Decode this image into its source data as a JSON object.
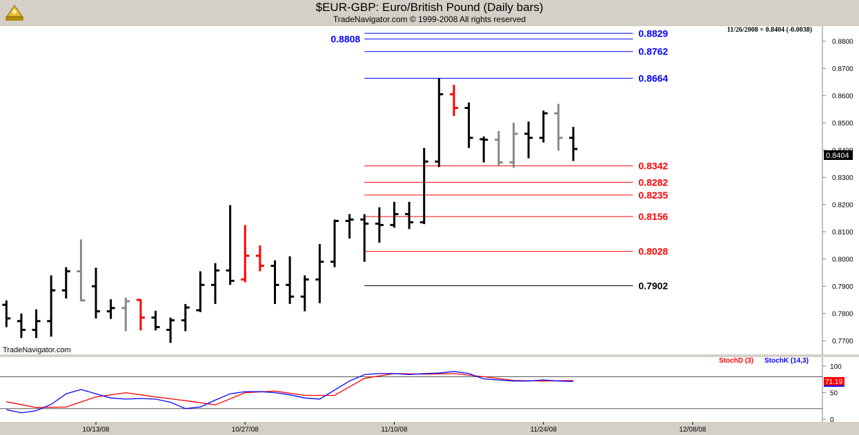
{
  "header": {
    "title": "$EUR-GBP:  Euro/British Pound  (Daily bars)",
    "copyright": "TradeNavigator.com © 1999-2008 All rights reserved"
  },
  "price_panel": {
    "last_info": "11/26/2008 = 0.8404 (-0.0038)",
    "watermark": "TradeNavigator.com",
    "current_price_label": "0.8404"
  },
  "stoch_panel": {
    "legend_d": "StochD (3)",
    "legend_k": "StochK (14,3)",
    "current_value_label": "71.19"
  },
  "colors": {
    "up_bar": "#000000",
    "down_bar_red": "#ff0000",
    "down_bar_gray": "#888888",
    "blue_level": "#0000ff",
    "red_level": "#ff0000",
    "black_level": "#000000",
    "stochK": "#0000ff",
    "stochD": "#ff0000",
    "panel_bg": "#ffffff",
    "frame_bg": "#d4d0c8",
    "price_box": "#000000",
    "stoch_box": "#ff0000"
  },
  "chart_data": [
    {
      "type": "ohlc",
      "title": "$EUR-GBP:  Euro/British Pound  (Daily bars)",
      "ylim": [
        0.765,
        0.8855
      ],
      "y_ticks": [
        "0.7700",
        "0.7800",
        "0.7900",
        "0.8000",
        "0.8100",
        "0.8200",
        "0.8300",
        "0.8400",
        "0.8500",
        "0.8600",
        "0.8700",
        "0.8800"
      ],
      "y_tick_values": [
        0.77,
        0.78,
        0.79,
        0.8,
        0.81,
        0.82,
        0.83,
        0.84,
        0.85,
        0.86,
        0.87,
        0.88
      ],
      "x_ticks": [
        {
          "label": "10/13/08",
          "index": 6
        },
        {
          "label": "10/27/08",
          "index": 16
        },
        {
          "label": "11/10/08",
          "index": 26
        },
        {
          "label": "11/24/08",
          "index": 36
        },
        {
          "label": "12/08/08",
          "index": 46
        }
      ],
      "x_domain": [
        -0.43,
        54.7
      ],
      "bars": [
        {
          "o": 0.7832,
          "h": 0.7848,
          "l": 0.775,
          "c": 0.7782,
          "color": "black"
        },
        {
          "o": 0.7772,
          "h": 0.78,
          "l": 0.771,
          "c": 0.774,
          "color": "black"
        },
        {
          "o": 0.774,
          "h": 0.7815,
          "l": 0.771,
          "c": 0.7772,
          "color": "black"
        },
        {
          "o": 0.7772,
          "h": 0.794,
          "l": 0.7715,
          "c": 0.7885,
          "color": "black"
        },
        {
          "o": 0.7885,
          "h": 0.797,
          "l": 0.7855,
          "c": 0.7955,
          "color": "black"
        },
        {
          "o": 0.7955,
          "h": 0.8072,
          "l": 0.7845,
          "c": 0.7848,
          "color": "gray"
        },
        {
          "o": 0.79,
          "h": 0.7968,
          "l": 0.7782,
          "c": 0.7808,
          "color": "black"
        },
        {
          "o": 0.7808,
          "h": 0.7852,
          "l": 0.778,
          "c": 0.782,
          "color": "black"
        },
        {
          "o": 0.782,
          "h": 0.7858,
          "l": 0.7735,
          "c": 0.7845,
          "color": "gray"
        },
        {
          "o": 0.785,
          "h": 0.7852,
          "l": 0.7738,
          "c": 0.7785,
          "color": "red"
        },
        {
          "o": 0.7785,
          "h": 0.781,
          "l": 0.7738,
          "c": 0.775,
          "color": "black"
        },
        {
          "o": 0.774,
          "h": 0.7785,
          "l": 0.7692,
          "c": 0.7775,
          "color": "black"
        },
        {
          "o": 0.7775,
          "h": 0.7835,
          "l": 0.7735,
          "c": 0.7822,
          "color": "black"
        },
        {
          "o": 0.7812,
          "h": 0.7955,
          "l": 0.7805,
          "c": 0.7905,
          "color": "black"
        },
        {
          "o": 0.7905,
          "h": 0.7985,
          "l": 0.7835,
          "c": 0.7958,
          "color": "black"
        },
        {
          "o": 0.7958,
          "h": 0.8198,
          "l": 0.7905,
          "c": 0.792,
          "color": "black"
        },
        {
          "o": 0.7925,
          "h": 0.8125,
          "l": 0.7915,
          "c": 0.8012,
          "color": "red"
        },
        {
          "o": 0.8012,
          "h": 0.805,
          "l": 0.7955,
          "c": 0.7975,
          "color": "red"
        },
        {
          "o": 0.7975,
          "h": 0.7995,
          "l": 0.7835,
          "c": 0.7905,
          "color": "black"
        },
        {
          "o": 0.7905,
          "h": 0.801,
          "l": 0.7835,
          "c": 0.7862,
          "color": "black"
        },
        {
          "o": 0.7862,
          "h": 0.794,
          "l": 0.7808,
          "c": 0.7925,
          "color": "black"
        },
        {
          "o": 0.7925,
          "h": 0.8055,
          "l": 0.7838,
          "c": 0.799,
          "color": "black"
        },
        {
          "o": 0.799,
          "h": 0.8145,
          "l": 0.797,
          "c": 0.814,
          "color": "black"
        },
        {
          "o": 0.814,
          "h": 0.8165,
          "l": 0.8075,
          "c": 0.8145,
          "color": "black"
        },
        {
          "o": 0.8145,
          "h": 0.8165,
          "l": 0.799,
          "c": 0.813,
          "color": "black"
        },
        {
          "o": 0.813,
          "h": 0.819,
          "l": 0.806,
          "c": 0.8125,
          "color": "black"
        },
        {
          "o": 0.8125,
          "h": 0.821,
          "l": 0.8115,
          "c": 0.8165,
          "color": "black"
        },
        {
          "o": 0.8165,
          "h": 0.821,
          "l": 0.811,
          "c": 0.8135,
          "color": "black"
        },
        {
          "o": 0.8135,
          "h": 0.8408,
          "l": 0.8128,
          "c": 0.8358,
          "color": "black"
        },
        {
          "o": 0.8358,
          "h": 0.8665,
          "l": 0.8338,
          "c": 0.8605,
          "color": "black"
        },
        {
          "o": 0.8605,
          "h": 0.864,
          "l": 0.8525,
          "c": 0.8555,
          "color": "red"
        },
        {
          "o": 0.8555,
          "h": 0.8575,
          "l": 0.8408,
          "c": 0.8445,
          "color": "black"
        },
        {
          "o": 0.844,
          "h": 0.845,
          "l": 0.8355,
          "c": 0.8438,
          "color": "black"
        },
        {
          "o": 0.8438,
          "h": 0.847,
          "l": 0.834,
          "c": 0.8355,
          "color": "gray"
        },
        {
          "o": 0.8355,
          "h": 0.85,
          "l": 0.8335,
          "c": 0.846,
          "color": "gray"
        },
        {
          "o": 0.846,
          "h": 0.8505,
          "l": 0.837,
          "c": 0.8445,
          "color": "black"
        },
        {
          "o": 0.8445,
          "h": 0.8545,
          "l": 0.8428,
          "c": 0.8535,
          "color": "black"
        },
        {
          "o": 0.8535,
          "h": 0.857,
          "l": 0.8398,
          "c": 0.8445,
          "color": "gray"
        },
        {
          "o": 0.8445,
          "h": 0.8485,
          "l": 0.836,
          "c": 0.8404,
          "color": "black"
        }
      ],
      "levels": [
        {
          "value": 0.8829,
          "label": "0.8829",
          "color": "blue"
        },
        {
          "value": 0.8808,
          "label": "0.8808",
          "color": "blue",
          "label_side": "left"
        },
        {
          "value": 0.8762,
          "label": "0.8762",
          "color": "blue"
        },
        {
          "value": 0.8664,
          "label": "0.8664",
          "color": "blue"
        },
        {
          "value": 0.8342,
          "label": "0.8342",
          "color": "red"
        },
        {
          "value": 0.8282,
          "label": "0.8282",
          "color": "red"
        },
        {
          "value": 0.8235,
          "label": "0.8235",
          "color": "red"
        },
        {
          "value": 0.8156,
          "label": "0.8156",
          "color": "red"
        },
        {
          "value": 0.8028,
          "label": "0.8028",
          "color": "red"
        },
        {
          "value": 0.7902,
          "label": "0.7902",
          "color": "black"
        }
      ],
      "levels_start_index": 24,
      "levels_end_index": 42
    },
    {
      "type": "line",
      "title": "Stochastic",
      "ylim": [
        -5,
        117
      ],
      "y_ticks": [
        "0",
        "50",
        "100"
      ],
      "y_tick_values": [
        0,
        50,
        100
      ],
      "reference_lines": [
        80,
        20
      ],
      "series": [
        {
          "name": "StochD (3)",
          "color": "red",
          "x": [
            0,
            2,
            4,
            6,
            8,
            10,
            12,
            14,
            16,
            18,
            20,
            22,
            24,
            26,
            28,
            30,
            32,
            34,
            36,
            38
          ],
          "values": [
            33,
            22,
            23,
            42,
            50,
            42,
            35,
            27,
            50,
            53,
            45,
            45,
            77,
            86,
            85,
            86,
            80,
            73,
            72,
            73
          ]
        },
        {
          "name": "StochK (14,3)",
          "color": "blue",
          "x": [
            0,
            1,
            2,
            3,
            4,
            5,
            6,
            7,
            8,
            9,
            10,
            11,
            12,
            13,
            14,
            15,
            16,
            17,
            18,
            19,
            20,
            21,
            22,
            23,
            24,
            25,
            26,
            27,
            28,
            29,
            30,
            31,
            32,
            33,
            34,
            35,
            36,
            37,
            38
          ],
          "values": [
            18,
            12,
            16,
            28,
            48,
            56,
            48,
            40,
            38,
            39,
            38,
            32,
            20,
            23,
            36,
            48,
            52,
            52,
            50,
            46,
            40,
            38,
            55,
            72,
            84,
            86,
            86,
            84,
            86,
            87,
            90,
            86,
            76,
            74,
            72,
            72,
            74,
            72,
            71
          ]
        }
      ]
    }
  ]
}
